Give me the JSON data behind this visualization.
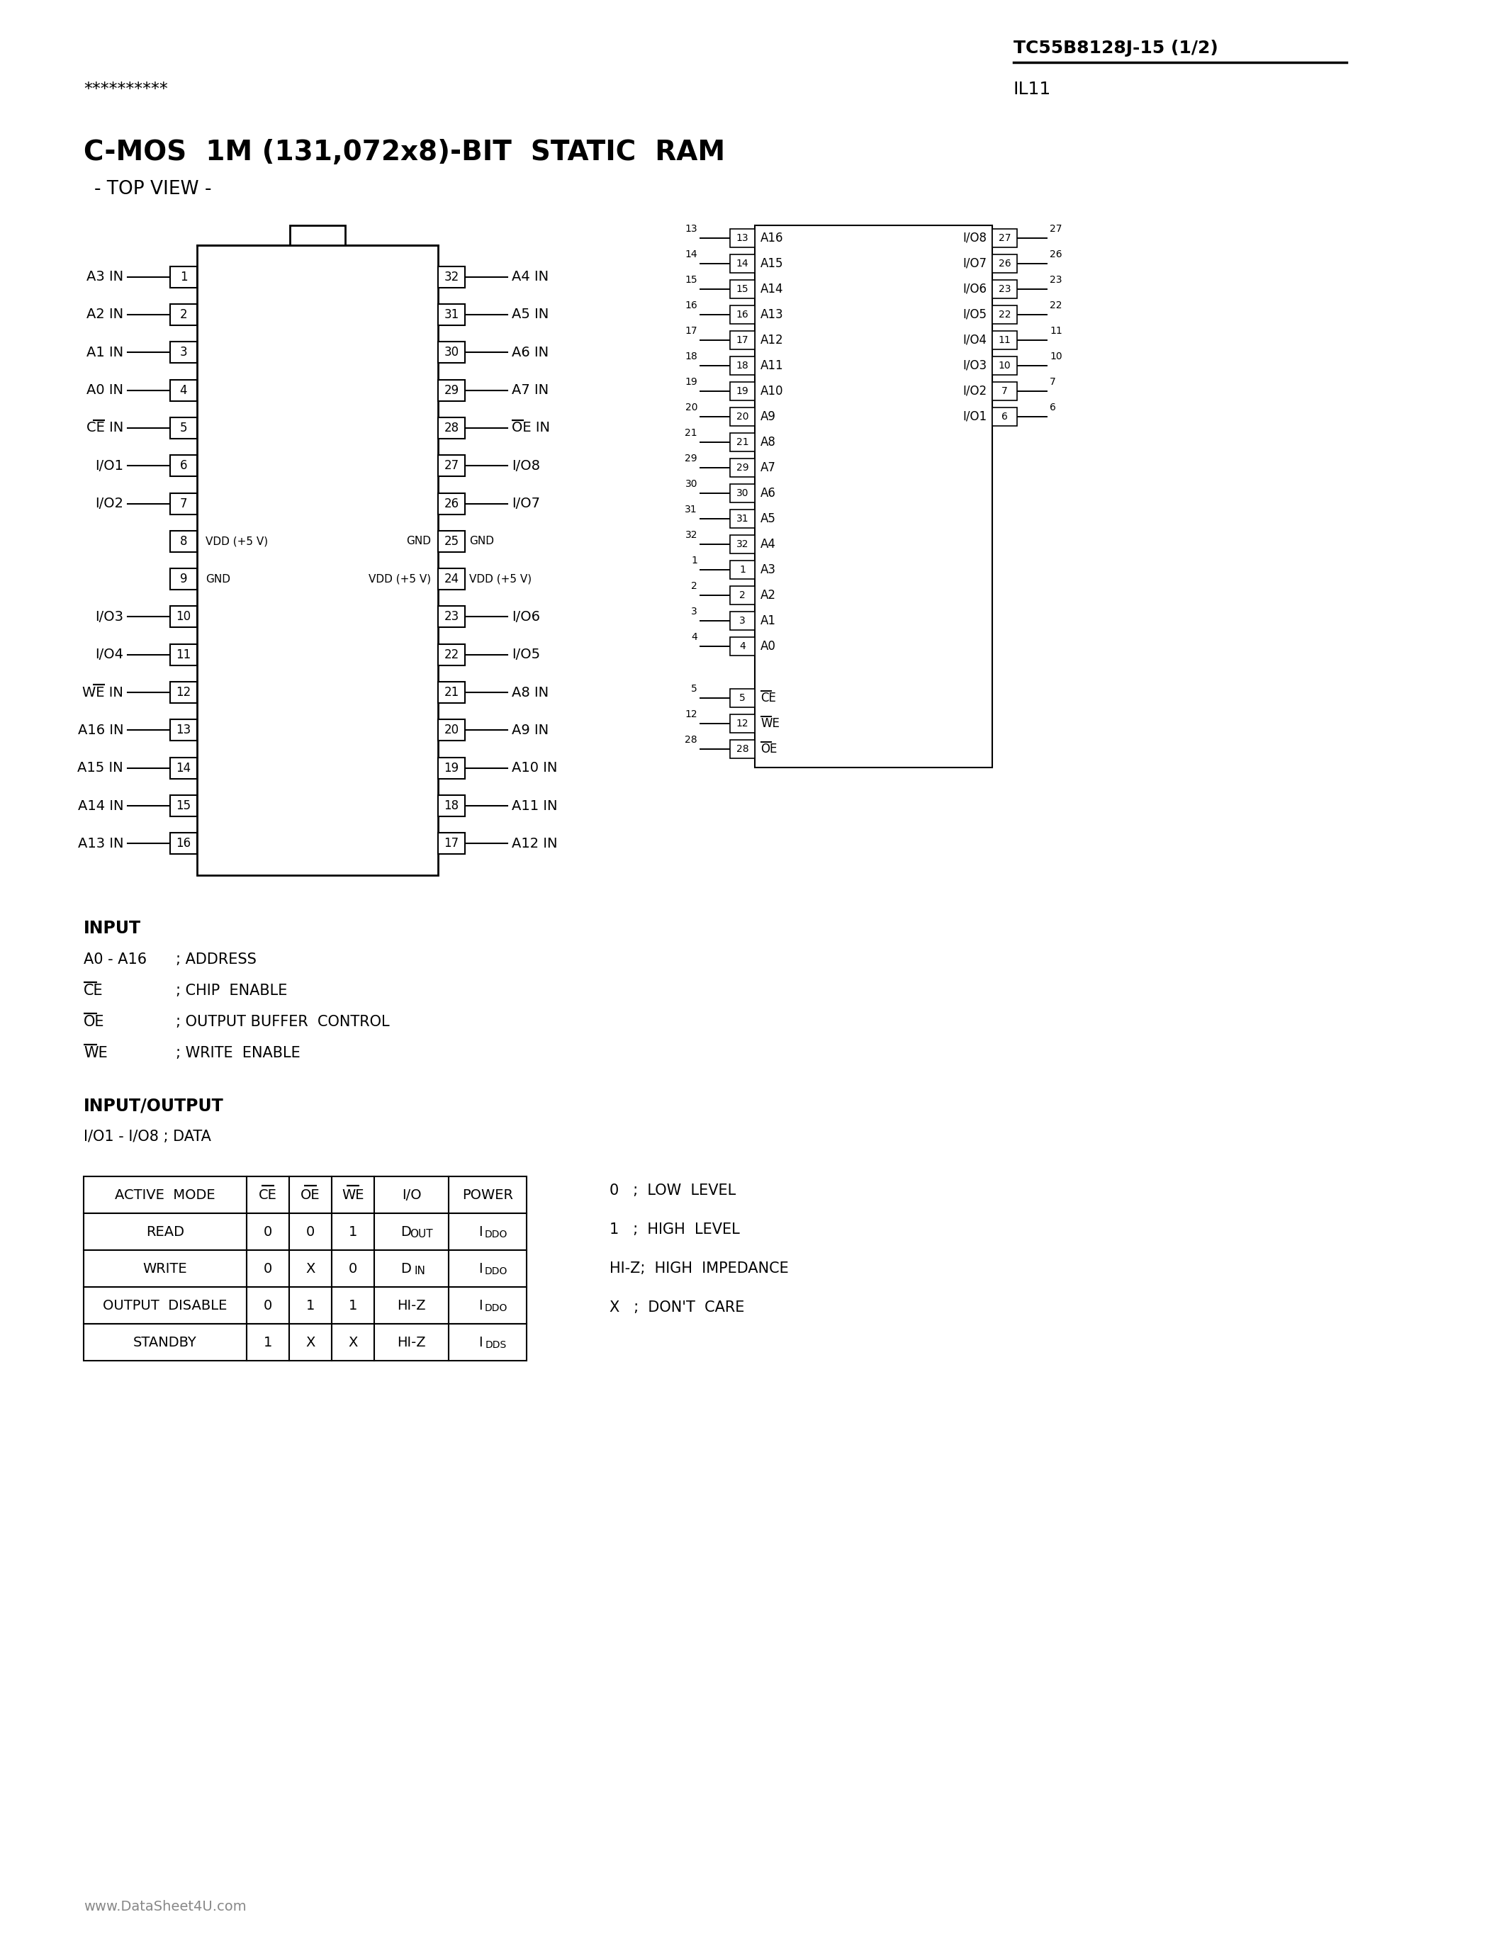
{
  "page_title": "TC55B8128J-15 (1/2)",
  "page_subtitle": "IL11",
  "asterisks": "**********",
  "chip_title": "C-MOS  1M (131,072x8)-BIT  STATIC  RAM",
  "chip_subtitle": "- TOP VIEW -",
  "bg_color": "#ffffff",
  "left_pins": [
    {
      "num": "1",
      "label": "A3 IN",
      "overline_chars": 0
    },
    {
      "num": "2",
      "label": "A2 IN",
      "overline_chars": 0
    },
    {
      "num": "3",
      "label": "A1 IN",
      "overline_chars": 0
    },
    {
      "num": "4",
      "label": "A0 IN",
      "overline_chars": 0
    },
    {
      "num": "5",
      "label": "CE IN",
      "overline_chars": 2
    },
    {
      "num": "6",
      "label": "I/O1",
      "overline_chars": 0
    },
    {
      "num": "7",
      "label": "I/O2",
      "overline_chars": 0
    },
    {
      "num": "8",
      "label": "VDD (+5 V)",
      "inside": true
    },
    {
      "num": "9",
      "label": "GND",
      "inside": true
    },
    {
      "num": "10",
      "label": "I/O3",
      "overline_chars": 0
    },
    {
      "num": "11",
      "label": "I/O4",
      "overline_chars": 0
    },
    {
      "num": "12",
      "label": "WE IN",
      "overline_chars": 2
    },
    {
      "num": "13",
      "label": "A16 IN",
      "overline_chars": 0
    },
    {
      "num": "14",
      "label": "A15 IN",
      "overline_chars": 0
    },
    {
      "num": "15",
      "label": "A14 IN",
      "overline_chars": 0
    },
    {
      "num": "16",
      "label": "A13 IN",
      "overline_chars": 0
    }
  ],
  "right_pins": [
    {
      "num": "32",
      "label": "A4 IN",
      "overline_chars": 0
    },
    {
      "num": "31",
      "label": "A5 IN",
      "overline_chars": 0
    },
    {
      "num": "30",
      "label": "A6 IN",
      "overline_chars": 0
    },
    {
      "num": "29",
      "label": "A7 IN",
      "overline_chars": 0
    },
    {
      "num": "28",
      "label": "OE IN",
      "overline_chars": 2
    },
    {
      "num": "27",
      "label": "I/O8",
      "overline_chars": 0
    },
    {
      "num": "26",
      "label": "I/O7",
      "overline_chars": 0
    },
    {
      "num": "25",
      "label": "GND",
      "inside": true
    },
    {
      "num": "24",
      "label": "VDD (+5 V)",
      "inside": true
    },
    {
      "num": "23",
      "label": "I/O6",
      "overline_chars": 0
    },
    {
      "num": "22",
      "label": "I/O5",
      "overline_chars": 0
    },
    {
      "num": "21",
      "label": "A8 IN",
      "overline_chars": 0
    },
    {
      "num": "20",
      "label": "A9 IN",
      "overline_chars": 0
    },
    {
      "num": "19",
      "label": "A10 IN",
      "overline_chars": 0
    },
    {
      "num": "18",
      "label": "A11 IN",
      "overline_chars": 0
    },
    {
      "num": "17",
      "label": "A12 IN",
      "overline_chars": 0
    }
  ],
  "pin8_right_label": "GND",
  "pin9_right_label": "VDD (+5 V)",
  "rd_left_pins": [
    {
      "num": "13",
      "label": "A16",
      "overline": false
    },
    {
      "num": "14",
      "label": "A15",
      "overline": false
    },
    {
      "num": "15",
      "label": "A14",
      "overline": false
    },
    {
      "num": "16",
      "label": "A13",
      "overline": false
    },
    {
      "num": "17",
      "label": "A12",
      "overline": false
    },
    {
      "num": "18",
      "label": "A11",
      "overline": false
    },
    {
      "num": "19",
      "label": "A10",
      "overline": false
    },
    {
      "num": "20",
      "label": "A9",
      "overline": false
    },
    {
      "num": "21",
      "label": "A8",
      "overline": false
    },
    {
      "num": "29",
      "label": "A7",
      "overline": false
    },
    {
      "num": "30",
      "label": "A6",
      "overline": false
    },
    {
      "num": "31",
      "label": "A5",
      "overline": false
    },
    {
      "num": "32",
      "label": "A4",
      "overline": false
    },
    {
      "num": "1",
      "label": "A3",
      "overline": false
    },
    {
      "num": "2",
      "label": "A2",
      "overline": false
    },
    {
      "num": "3",
      "label": "A1",
      "overline": false
    },
    {
      "num": "4",
      "label": "A0",
      "overline": false
    },
    {
      "num": "5",
      "label": "CE",
      "overline": true
    },
    {
      "num": "12",
      "label": "WE",
      "overline": true
    },
    {
      "num": "28",
      "label": "OE",
      "overline": true
    }
  ],
  "rd_right_pins": [
    {
      "num": "27",
      "label": "I/O8"
    },
    {
      "num": "26",
      "label": "I/O7"
    },
    {
      "num": "23",
      "label": "I/O6"
    },
    {
      "num": "22",
      "label": "I/O5"
    },
    {
      "num": "11",
      "label": "I/O4"
    },
    {
      "num": "10",
      "label": "I/O3"
    },
    {
      "num": "7",
      "label": "I/O2"
    },
    {
      "num": "6",
      "label": "I/O1"
    }
  ],
  "input_section_title": "INPUT",
  "input_lines": [
    {
      "label": "A0 - A16",
      "text": "; ADDRESS",
      "overline": false
    },
    {
      "label": "CE",
      "text": "; CHIP  ENABLE",
      "overline": true
    },
    {
      "label": "OE",
      "text": "; OUTPUT BUFFER  CONTROL",
      "overline": true
    },
    {
      "label": "WE",
      "text": "; WRITE  ENABLE",
      "overline": true
    }
  ],
  "io_section_title": "INPUT/OUTPUT",
  "io_line": "I/O1 - I/O8 ; DATA",
  "table_headers": [
    "ACTIVE  MODE",
    "CE",
    "OE",
    "WE",
    "I/O",
    "POWER"
  ],
  "table_rows": [
    [
      "READ",
      "0",
      "0",
      "1",
      "D OUT",
      "IDDO"
    ],
    [
      "WRITE",
      "0",
      "X",
      "0",
      "D IN",
      "IDDO"
    ],
    [
      "OUTPUT  DISABLE",
      "0",
      "1",
      "1",
      "HI-Z",
      "IDDO"
    ],
    [
      "STANDBY",
      "1",
      "X",
      "X",
      "HI-Z",
      "IDDS"
    ]
  ],
  "overline_col_headers": [
    "CE",
    "OE",
    "WE"
  ],
  "legend_lines": [
    {
      "text": "0   ;  LOW  LEVEL",
      "overline": ""
    },
    {
      "text": "1   ;  HIGH  LEVEL",
      "overline": ""
    },
    {
      "text": "HI-Z;  HIGH  IMPEDANCE",
      "overline": ""
    },
    {
      "text": "X   ;  DON'T  CARE",
      "overline": ""
    }
  ],
  "footer": "www.DataSheet4U.com"
}
